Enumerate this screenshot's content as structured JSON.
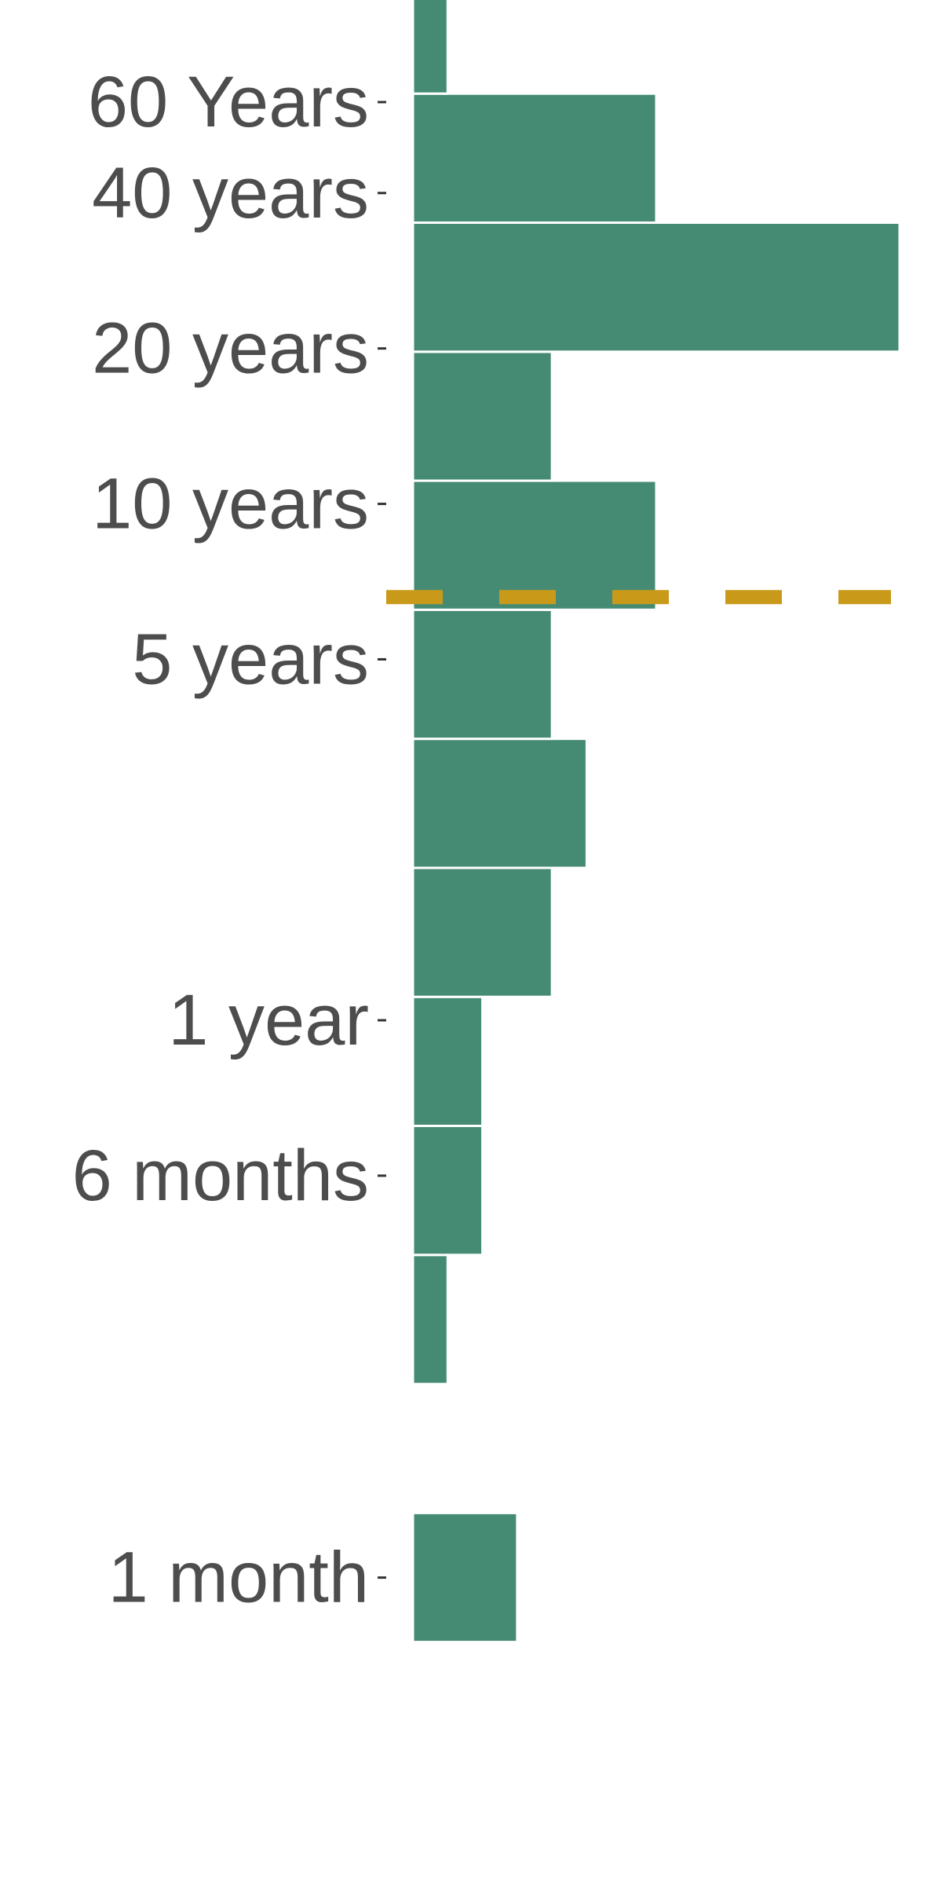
{
  "chart_data": {
    "type": "bar",
    "orientation": "horizontal",
    "title": "",
    "xlabel": "",
    "ylabel": "",
    "y_scale": "log",
    "y_ticks": [
      {
        "label": "60 Years",
        "value_years": 60
      },
      {
        "label": "40 years",
        "value_years": 40
      },
      {
        "label": "20 years",
        "value_years": 20
      },
      {
        "label": "10 years",
        "value_years": 10
      },
      {
        "label": "5 years",
        "value_years": 5
      },
      {
        "label": "1 year",
        "value_years": 1
      },
      {
        "label": "6 months",
        "value_years": 0.5
      },
      {
        "label": "1 month",
        "value_years": 0.0833
      }
    ],
    "bins": [
      {
        "from_years": 0.0625,
        "to_years": 0.1111,
        "count": 3
      },
      {
        "from_years": 0.1975,
        "to_years": 0.3512,
        "count": 1
      },
      {
        "from_years": 0.3512,
        "to_years": 0.6243,
        "count": 2
      },
      {
        "from_years": 0.6243,
        "to_years": 1.11,
        "count": 2
      },
      {
        "from_years": 1.11,
        "to_years": 1.973,
        "count": 4
      },
      {
        "from_years": 1.973,
        "to_years": 3.508,
        "count": 5
      },
      {
        "from_years": 3.508,
        "to_years": 6.237,
        "count": 4
      },
      {
        "from_years": 6.237,
        "to_years": 11.09,
        "count": 7
      },
      {
        "from_years": 11.09,
        "to_years": 19.71,
        "count": 4
      },
      {
        "from_years": 19.71,
        "to_years": 35.05,
        "count": 14
      },
      {
        "from_years": 35.05,
        "to_years": 62.31,
        "count": 7
      },
      {
        "from_years": 62.31,
        "to_years": 110.8,
        "count": 1
      }
    ],
    "count_max": 14,
    "reference_line_years": 6.6,
    "grid": false,
    "legend": "none",
    "colors": {
      "bar": "#458b73",
      "bar_outline": "#ffffff",
      "reference_line": "#c99a1a",
      "tick_text": "#4d4d4d"
    }
  }
}
